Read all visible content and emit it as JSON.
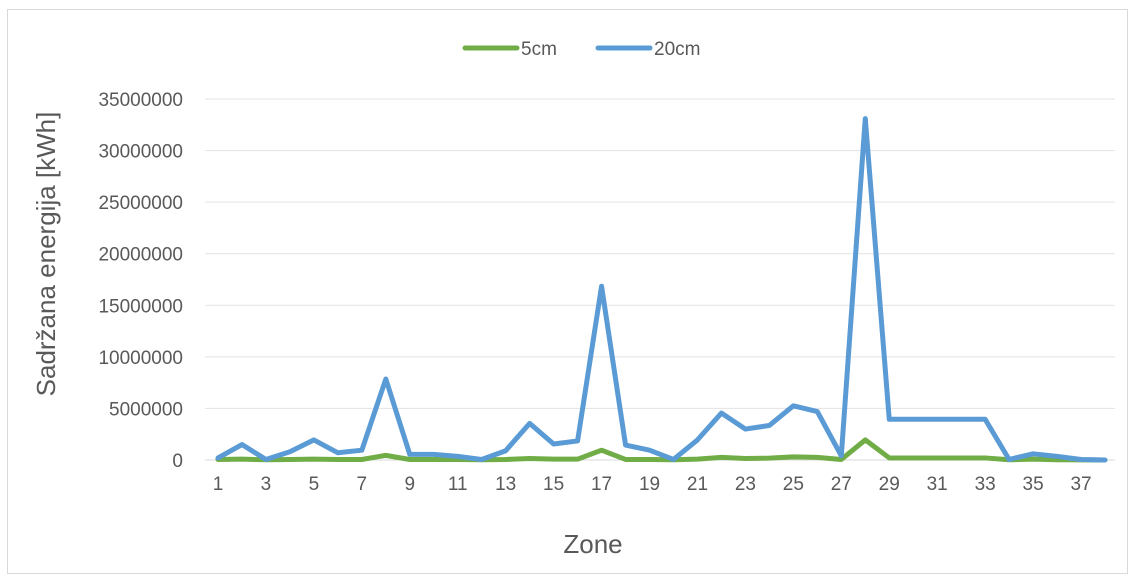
{
  "chart_data": {
    "type": "line",
    "title": "",
    "xlabel": "Zone",
    "ylabel": "Sadržana energija [kWh]",
    "ylim": [
      0,
      35000000
    ],
    "yticks": [
      0,
      5000000,
      10000000,
      15000000,
      20000000,
      25000000,
      30000000,
      35000000
    ],
    "ytick_labels": [
      "0",
      "5000000",
      "10000000",
      "15000000",
      "20000000",
      "25000000",
      "30000000",
      "35000000"
    ],
    "x": [
      1,
      2,
      3,
      4,
      5,
      6,
      7,
      8,
      9,
      10,
      11,
      12,
      13,
      14,
      15,
      16,
      17,
      18,
      19,
      20,
      21,
      22,
      23,
      24,
      25,
      26,
      27,
      28,
      29,
      30,
      31,
      32,
      33,
      34,
      35,
      36,
      37,
      38
    ],
    "xtick_labels": [
      "1",
      "3",
      "5",
      "7",
      "9",
      "11",
      "13",
      "15",
      "17",
      "19",
      "21",
      "23",
      "25",
      "27",
      "29",
      "31",
      "33",
      "35",
      "37"
    ],
    "grid": true,
    "legend_position": "top-center",
    "series": [
      {
        "name": "5cm",
        "color": "#70ad47",
        "values": [
          50000,
          80000,
          20000,
          50000,
          80000,
          50000,
          50000,
          450000,
          50000,
          50000,
          50000,
          20000,
          50000,
          150000,
          80000,
          80000,
          950000,
          50000,
          50000,
          20000,
          80000,
          250000,
          150000,
          180000,
          300000,
          250000,
          50000,
          1950000,
          200000,
          200000,
          200000,
          200000,
          200000,
          20000,
          80000,
          30000,
          10000,
          0
        ]
      },
      {
        "name": "20cm",
        "color": "#5b9bd5",
        "values": [
          200000,
          1500000,
          50000,
          800000,
          1950000,
          700000,
          950000,
          7850000,
          550000,
          550000,
          350000,
          50000,
          900000,
          3550000,
          1550000,
          1850000,
          16850000,
          1450000,
          950000,
          50000,
          1950000,
          4550000,
          3000000,
          3350000,
          5250000,
          4700000,
          400000,
          33100000,
          3950000,
          3950000,
          3950000,
          3950000,
          3950000,
          50000,
          600000,
          350000,
          50000,
          0
        ]
      }
    ]
  }
}
